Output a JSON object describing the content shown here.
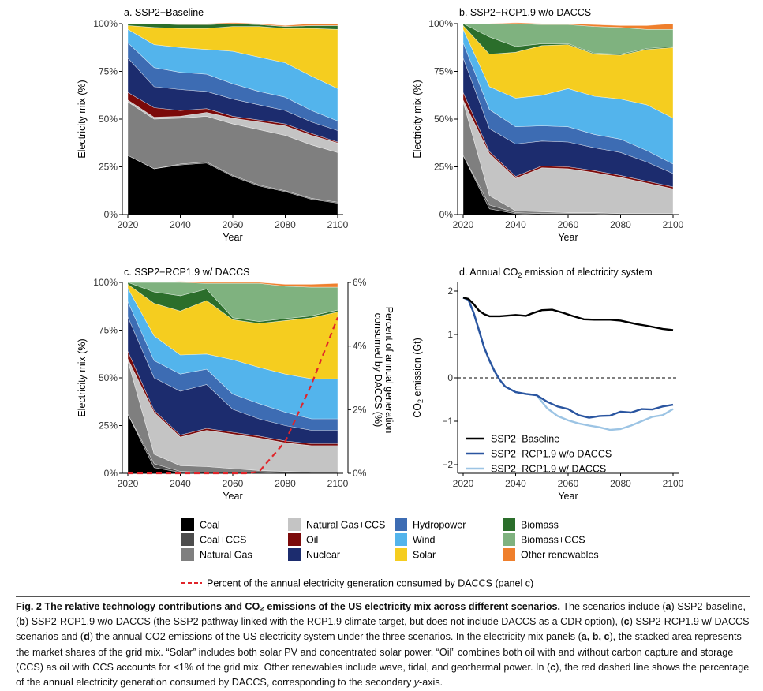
{
  "figure": {
    "legend": {
      "items": [
        {
          "key": "coal",
          "label": "Coal",
          "color": "#000000"
        },
        {
          "key": "coal_ccs",
          "label": "Coal+CCS",
          "color": "#4d4d4d"
        },
        {
          "key": "natural_gas",
          "label": "Natural Gas",
          "color": "#7f7f7f"
        },
        {
          "key": "natural_gas_ccs",
          "label": "Natural Gas+CCS",
          "color": "#c4c4c4"
        },
        {
          "key": "oil",
          "label": "Oil",
          "color": "#7b0a0a"
        },
        {
          "key": "nuclear",
          "label": "Nuclear",
          "color": "#1c2c6e"
        },
        {
          "key": "hydropower",
          "label": "Hydropower",
          "color": "#3d6cb3"
        },
        {
          "key": "wind",
          "label": "Wind",
          "color": "#53b4ec"
        },
        {
          "key": "solar",
          "label": "Solar",
          "color": "#f5cd1f"
        },
        {
          "key": "biomass",
          "label": "Biomass",
          "color": "#2b6e2b"
        },
        {
          "key": "biomass_ccs",
          "label": "Biomass+CCS",
          "color": "#7fb27f"
        },
        {
          "key": "other_renewables",
          "label": "Other renewables",
          "color": "#ef7f2c"
        }
      ],
      "dashed_label": "Percent of the annual electricity generation consumed by DACCS (panel c)",
      "dashed_color": "#e0242a"
    },
    "caption": {
      "fig_label": "Fig. 2",
      "title": "The relative technology contributions and CO₂ emissions of the US electricity mix across different scenarios.",
      "p1": " The scenarios include (",
      "a": "a",
      "p2": ") SSP2-baseline, (",
      "b": "b",
      "p3": ") SSP2-RCP1.9 w/o DACCS (the SSP2 pathway linked with the RCP1.9 climate target, but does not include DACCS as a CDR option), (",
      "c": "c",
      "p4": ") SSP2-RCP1.9 w/ DACCS scenarios and (",
      "d": "d",
      "p5": ") the annual CO2 emissions of the US electricity system under the three scenarios. In the electricity mix panels (",
      "abc": "a, b, c",
      "p6": "), the stacked area represents the market shares of the grid mix. “Solar” includes both solar PV and concentrated solar power. “Oil” combines both oil with and without carbon capture and storage (CCS) as oil with CCS accounts for <1% of the grid mix. Other renewables include wave, tidal, and geothermal power. In (",
      "c2": "c",
      "p7": "), the red dashed line shows the percentage of the annual electricity generation consumed by DACCS, corresponding to the secondary ",
      "yaxis": "y",
      "p8": "-axis."
    }
  },
  "chart_data": [
    {
      "panel": "a",
      "type": "area",
      "title": "a. SSP2−Baseline",
      "xlabel": "Year",
      "ylabel": "Electricity mix (%)",
      "x": [
        2020,
        2030,
        2040,
        2050,
        2060,
        2070,
        2080,
        2090,
        2100
      ],
      "xticks": [
        "2020",
        "2040",
        "2060",
        "2080",
        "2100"
      ],
      "yticks": [
        "0%",
        "25%",
        "50%",
        "75%",
        "100%"
      ],
      "ylim": [
        0,
        100
      ],
      "stacked": true,
      "series": [
        {
          "name": "Coal",
          "values": [
            31,
            24,
            26,
            27,
            20,
            15,
            12,
            8,
            6
          ]
        },
        {
          "name": "Coal+CCS",
          "values": [
            0,
            0,
            0.5,
            0.5,
            0.5,
            0.5,
            0.5,
            0.5,
            0.5
          ]
        },
        {
          "name": "Natural Gas",
          "values": [
            28,
            26,
            24,
            24,
            27,
            29,
            29,
            28,
            26
          ]
        },
        {
          "name": "Natural Gas+CCS",
          "values": [
            1,
            1,
            1,
            2,
            3,
            4,
            5,
            5,
            5
          ]
        },
        {
          "name": "Oil",
          "values": [
            4,
            5,
            3,
            2,
            1,
            1,
            1,
            1,
            0.5
          ]
        },
        {
          "name": "Nuclear",
          "values": [
            18,
            11,
            11,
            9,
            9,
            8,
            7,
            6,
            6
          ]
        },
        {
          "name": "Hydropower",
          "values": [
            8,
            10,
            9,
            9,
            8,
            7,
            7,
            6,
            5
          ]
        },
        {
          "name": "Wind",
          "values": [
            7,
            12,
            13,
            13,
            17,
            18,
            18,
            18,
            17
          ]
        },
        {
          "name": "Solar",
          "values": [
            2,
            9,
            10,
            11,
            13,
            16,
            18,
            25,
            31
          ]
        },
        {
          "name": "Biomass",
          "values": [
            1,
            2,
            2,
            2,
            1.5,
            1,
            1,
            1.5,
            2
          ]
        },
        {
          "name": "Biomass+CCS",
          "values": [
            0,
            0,
            0,
            0,
            0,
            0,
            0,
            0,
            0
          ]
        },
        {
          "name": "Other renewables",
          "values": [
            0,
            0,
            0.5,
            0.5,
            0.5,
            0.5,
            0.5,
            1,
            1
          ]
        }
      ]
    },
    {
      "panel": "b",
      "type": "area",
      "title": "b. SSP2−RCP1.9 w/o DACCS",
      "xlabel": "Year",
      "ylabel": "Electricity mix (%)",
      "x": [
        2020,
        2030,
        2040,
        2050,
        2060,
        2070,
        2080,
        2090,
        2100
      ],
      "xticks": [
        "2020",
        "2040",
        "2060",
        "2080",
        "2100"
      ],
      "yticks": [
        "0%",
        "25%",
        "50%",
        "75%",
        "100%"
      ],
      "ylim": [
        0,
        100
      ],
      "stacked": true,
      "series": [
        {
          "name": "Coal",
          "values": [
            31,
            3,
            0.5,
            0,
            0,
            0,
            0,
            0,
            0
          ]
        },
        {
          "name": "Coal+CCS",
          "values": [
            0,
            2,
            0.5,
            0.5,
            0.5,
            0.5,
            0,
            0,
            0
          ]
        },
        {
          "name": "Natural Gas",
          "values": [
            28,
            5,
            1,
            1,
            0.5,
            0.5,
            0.5,
            0.5,
            0.5
          ]
        },
        {
          "name": "Natural Gas+CCS",
          "values": [
            1,
            22,
            17,
            23,
            23,
            21,
            19,
            16,
            13
          ]
        },
        {
          "name": "Oil",
          "values": [
            4,
            1,
            1,
            1,
            1,
            1,
            1,
            1,
            1
          ]
        },
        {
          "name": "Nuclear",
          "values": [
            18,
            12,
            17,
            13,
            13,
            12,
            12,
            10,
            7
          ]
        },
        {
          "name": "Hydropower",
          "values": [
            8,
            10,
            9,
            8,
            8,
            7,
            7,
            6,
            5
          ]
        },
        {
          "name": "Wind",
          "values": [
            7,
            12,
            15,
            16,
            20,
            20,
            21,
            24,
            24
          ]
        },
        {
          "name": "Solar",
          "values": [
            2,
            17,
            24,
            26,
            23,
            22,
            23,
            29,
            37
          ]
        },
        {
          "name": "Biomass",
          "values": [
            1,
            9,
            3,
            1,
            0.5,
            0.5,
            0.5,
            0.5,
            0.5
          ]
        },
        {
          "name": "Biomass+CCS",
          "values": [
            0,
            7,
            12,
            10,
            10,
            14,
            14,
            10,
            9
          ]
        },
        {
          "name": "Other renewables",
          "values": [
            0,
            0,
            0.5,
            0.5,
            0.5,
            1,
            1,
            2,
            3
          ]
        }
      ]
    },
    {
      "panel": "c",
      "type": "area",
      "title": "c. SSP2−RCP1.9 w/ DACCS",
      "xlabel": "Year",
      "ylabel": "Electricity mix (%)",
      "ylabel_right": "Percent of annual generation consumed by DACCS (%)",
      "x": [
        2020,
        2030,
        2040,
        2050,
        2060,
        2070,
        2080,
        2090,
        2100
      ],
      "xticks": [
        "2020",
        "2040",
        "2060",
        "2080",
        "2100"
      ],
      "yticks": [
        "0%",
        "25%",
        "50%",
        "75%",
        "100%"
      ],
      "y2ticks": [
        "0%",
        "2%",
        "4%",
        "6%"
      ],
      "ylim": [
        0,
        100
      ],
      "y2lim": [
        0,
        6
      ],
      "stacked": true,
      "series": [
        {
          "name": "Coal",
          "values": [
            31,
            3,
            0.5,
            0,
            0,
            0,
            0,
            0,
            0
          ]
        },
        {
          "name": "Coal+CCS",
          "values": [
            0,
            2,
            0.5,
            0.5,
            0.5,
            0.5,
            0,
            0,
            0
          ]
        },
        {
          "name": "Natural Gas",
          "values": [
            28,
            5,
            3,
            3,
            2,
            1,
            1,
            0.5,
            0.5
          ]
        },
        {
          "name": "Natural Gas+CCS",
          "values": [
            1,
            22,
            15,
            19,
            18,
            17,
            15,
            14,
            14
          ]
        },
        {
          "name": "Oil",
          "values": [
            4,
            1,
            1,
            1,
            1,
            1,
            1,
            1,
            1
          ]
        },
        {
          "name": "Nuclear",
          "values": [
            18,
            17,
            23,
            23,
            12,
            9,
            8,
            7,
            7
          ]
        },
        {
          "name": "Hydropower",
          "values": [
            8,
            9,
            9,
            8,
            8,
            8,
            7,
            6,
            6
          ]
        },
        {
          "name": "Wind",
          "values": [
            7,
            13,
            10,
            8,
            18,
            19,
            20,
            21,
            21
          ]
        },
        {
          "name": "Solar",
          "values": [
            2,
            17,
            23,
            28,
            21,
            23,
            28,
            32,
            35
          ]
        },
        {
          "name": "Biomass",
          "values": [
            1,
            6,
            8,
            6,
            1,
            1,
            1,
            1,
            1
          ]
        },
        {
          "name": "Biomass+CCS",
          "values": [
            0,
            5,
            7,
            3,
            18,
            20,
            17,
            15,
            12
          ]
        },
        {
          "name": "Other renewables",
          "values": [
            0,
            0,
            0.5,
            0.5,
            0.5,
            0.5,
            1,
            1.5,
            2
          ]
        }
      ],
      "dashed_line": {
        "x": [
          2020,
          2030,
          2040,
          2050,
          2060,
          2065,
          2070,
          2080,
          2090,
          2100
        ],
        "values": [
          0,
          0,
          0,
          0,
          0,
          0,
          0.05,
          1,
          2.8,
          4.9
        ]
      }
    },
    {
      "panel": "d",
      "type": "line",
      "title": "d. Annual CO",
      "title_sub": "2",
      "title_tail": " emission of electricity system",
      "xlabel": "Year",
      "ylabel": "CO",
      "ylabel_sub": "2",
      "ylabel_tail": " emission (Gt)",
      "xticks": [
        "2020",
        "2040",
        "2060",
        "2080",
        "2100"
      ],
      "yticks": [
        "−2",
        "−1",
        "0",
        "1",
        "2"
      ],
      "ylim": [
        -2.2,
        2.2
      ],
      "xlim": [
        2020,
        2100
      ],
      "reference_line": 0,
      "series": [
        {
          "name": "SSP2−Baseline",
          "x": [
            2020,
            2022,
            2024,
            2026,
            2028,
            2030,
            2034,
            2040,
            2044,
            2046,
            2050,
            2054,
            2058,
            2062,
            2066,
            2070,
            2076,
            2080,
            2086,
            2090,
            2096,
            2100
          ],
          "values": [
            1.85,
            1.82,
            1.7,
            1.55,
            1.47,
            1.42,
            1.42,
            1.45,
            1.43,
            1.48,
            1.56,
            1.57,
            1.5,
            1.42,
            1.35,
            1.34,
            1.34,
            1.32,
            1.24,
            1.2,
            1.13,
            1.1
          ]
        },
        {
          "name": "SSP2−RCP1.9 w/o DACCS",
          "x": [
            2020,
            2022,
            2024,
            2026,
            2028,
            2030,
            2032,
            2034,
            2036,
            2040,
            2044,
            2048,
            2052,
            2056,
            2060,
            2064,
            2068,
            2072,
            2076,
            2080,
            2084,
            2088,
            2092,
            2096,
            2100
          ],
          "values": [
            1.85,
            1.8,
            1.5,
            1.1,
            0.7,
            0.4,
            0.15,
            -0.05,
            -0.2,
            -0.33,
            -0.37,
            -0.4,
            -0.55,
            -0.66,
            -0.72,
            -0.86,
            -0.92,
            -0.88,
            -0.87,
            -0.78,
            -0.8,
            -0.72,
            -0.73,
            -0.66,
            -0.62
          ]
        },
        {
          "name": "SSP2−RCP1.9 w/ DACCS",
          "x": [
            2020,
            2022,
            2024,
            2026,
            2028,
            2030,
            2032,
            2034,
            2036,
            2040,
            2044,
            2048,
            2052,
            2056,
            2060,
            2064,
            2068,
            2072,
            2076,
            2080,
            2084,
            2088,
            2092,
            2096,
            2100
          ],
          "values": [
            1.85,
            1.8,
            1.5,
            1.1,
            0.7,
            0.4,
            0.15,
            -0.05,
            -0.2,
            -0.33,
            -0.37,
            -0.4,
            -0.7,
            -0.88,
            -0.98,
            -1.05,
            -1.1,
            -1.14,
            -1.2,
            -1.18,
            -1.1,
            -1.0,
            -0.9,
            -0.86,
            -0.72
          ]
        }
      ],
      "colors": [
        "#000000",
        "#2a55a0",
        "#9cc4e4"
      ]
    }
  ]
}
